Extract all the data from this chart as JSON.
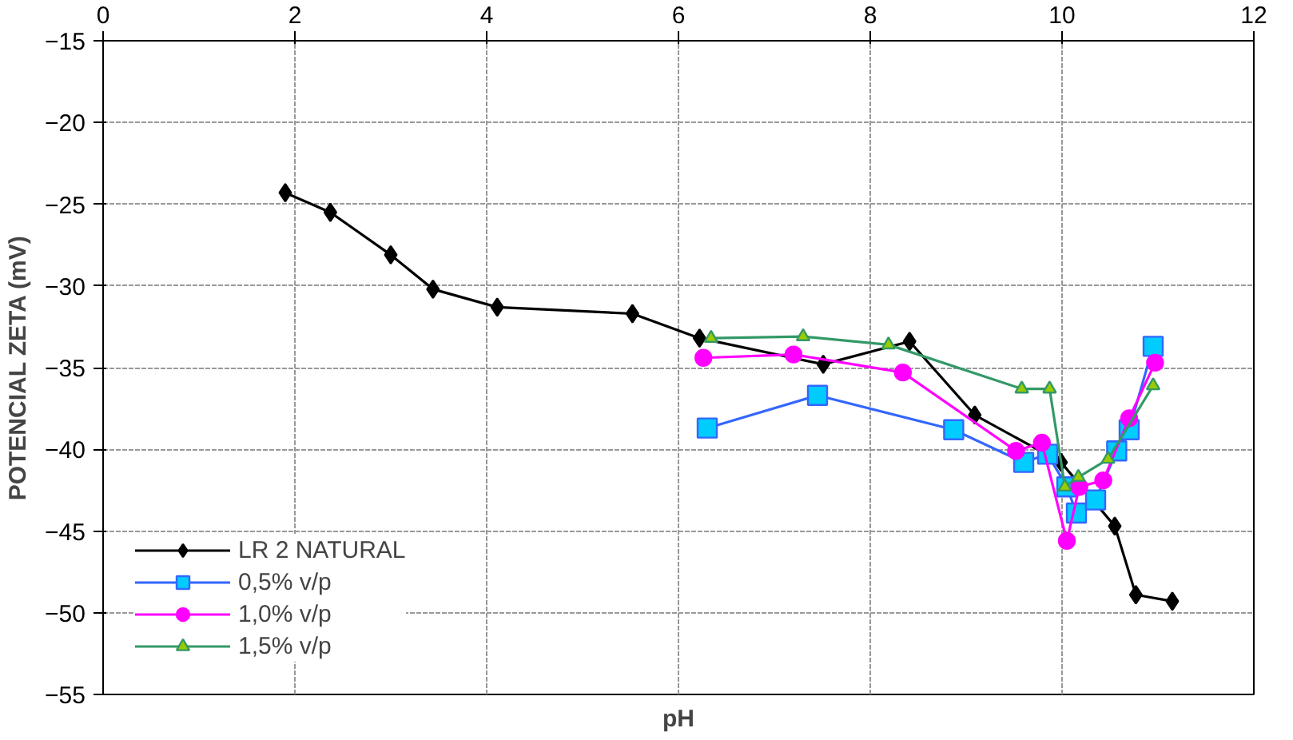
{
  "chart_data": {
    "type": "line",
    "xlabel": "pH",
    "ylabel": "POTENCIAL ZETA (mV)",
    "xlim": [
      0,
      12
    ],
    "xticks": [
      0,
      2,
      4,
      6,
      8,
      10,
      12
    ],
    "ylim": [
      -55,
      -15
    ],
    "yticks": [
      -55,
      -50,
      -45,
      -40,
      -35,
      -30,
      -25,
      -20,
      -15
    ],
    "grid": true,
    "legend": "bottom left",
    "line_style": "solid",
    "series": [
      {
        "name": "LR 2 NATURAL",
        "color": "#000000",
        "marker": "diamond",
        "x": [
          1.9,
          2.37,
          3.0,
          3.44,
          4.11,
          5.52,
          6.22,
          7.51,
          8.41,
          9.09,
          9.99,
          10.55,
          10.77,
          11.15
        ],
        "values": [
          -24.3,
          -25.5,
          -28.1,
          -30.2,
          -31.3,
          -31.7,
          -33.2,
          -34.8,
          -33.4,
          -37.9,
          -40.8,
          -44.7,
          -48.9,
          -49.3
        ]
      },
      {
        "name": "0,5% v/p",
        "color": "#3366ff",
        "marker": "square",
        "x": [
          6.3,
          7.45,
          8.87,
          9.6,
          9.85,
          10.05,
          10.15,
          10.35,
          10.57,
          10.7,
          10.95
        ],
        "values": [
          -38.7,
          -36.7,
          -38.8,
          -40.8,
          -40.3,
          -42.3,
          -43.9,
          -43.1,
          -40.1,
          -38.8,
          -33.7
        ]
      },
      {
        "name": "1,0% v/p",
        "color": "#ff00ff",
        "marker": "circle",
        "x": [
          6.26,
          7.2,
          8.34,
          9.52,
          9.79,
          10.05,
          10.18,
          10.43,
          10.7,
          10.97
        ],
        "values": [
          -34.4,
          -34.2,
          -35.3,
          -40.1,
          -39.6,
          -45.6,
          -42.3,
          -41.9,
          -38.1,
          -34.7
        ]
      },
      {
        "name": "1,5% v/p",
        "color": "#339966",
        "marker": "triangle",
        "x": [
          6.34,
          7.3,
          8.19,
          9.58,
          9.87,
          10.03,
          10.17,
          10.48,
          10.95
        ],
        "values": [
          -33.2,
          -33.1,
          -33.6,
          -36.3,
          -36.3,
          -42.3,
          -41.7,
          -40.6,
          -36.1
        ]
      }
    ]
  }
}
